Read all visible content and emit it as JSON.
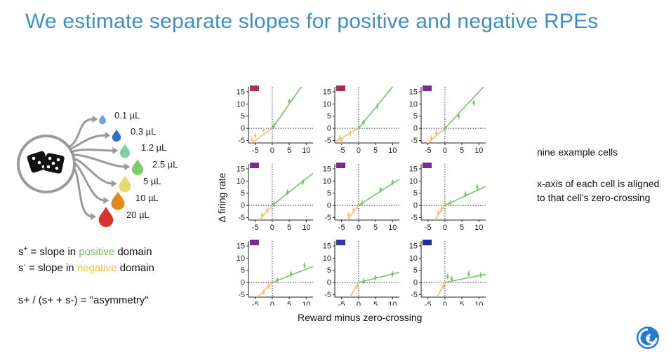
{
  "slide": {
    "title": "We estimate separate slopes for positive and negative RPEs"
  },
  "diagram": {
    "drops": [
      {
        "label": "0.1 µL",
        "color": "#6aa7e2"
      },
      {
        "label": "0.3 µL",
        "color": "#2f6fc0"
      },
      {
        "label": "1.2 µL",
        "color": "#7fd0aa"
      },
      {
        "label": "2.5 µL",
        "color": "#7ecb6a"
      },
      {
        "label": "5 µL",
        "color": "#e3db6c"
      },
      {
        "label": "10 µL",
        "color": "#e08a1e"
      },
      {
        "label": "20 µL",
        "color": "#d8332f"
      }
    ]
  },
  "equations": {
    "s_plus_symbol": "s",
    "s_plus_sup": "+",
    "s_plus_prefix": " = slope in ",
    "s_plus_word": "positive",
    "s_plus_suffix": " domain",
    "s_minus_symbol": "s",
    "s_minus_sup": "-",
    "s_minus_prefix": " = slope in ",
    "s_minus_word": "negative",
    "s_minus_suffix": " domain",
    "asym_text": "s+ / (s+ + s-) = \"asymmetry\"",
    "positive_color": "#6cc05e",
    "negative_color": "#f1c24a"
  },
  "notes": {
    "line1": "nine example cells",
    "line2": "x-axis of each cell is aligned to that cell's zero-crossing"
  },
  "chart_data": {
    "type": "scatter",
    "ylabel": "Δ firing rate",
    "xlabel": "Reward minus zero-crossing",
    "xlim": [
      -7,
      12
    ],
    "ylim": [
      -6,
      17
    ],
    "xticks": [
      -5,
      0,
      5,
      10
    ],
    "yticks": [
      -5,
      0,
      5,
      10,
      15
    ],
    "positive_color": "#78c46c",
    "negative_color": "#f2c17a",
    "cells": [
      {
        "tag_color": "#a8365e",
        "s_neg": 1.0,
        "s_pos": 2.0,
        "neg_points": [
          [
            -6,
            -4.5
          ],
          [
            -5,
            -3
          ],
          [
            -2.5,
            -0.8
          ]
        ],
        "pos_points": [
          [
            0.5,
            1
          ],
          [
            5,
            11
          ]
        ]
      },
      {
        "tag_color": "#a0305a",
        "s_neg": 0.8,
        "s_pos": 1.7,
        "neg_points": [
          [
            -5.5,
            -4
          ],
          [
            -5,
            -5
          ],
          [
            -2.5,
            -2
          ]
        ],
        "pos_points": [
          [
            1.5,
            2.5
          ],
          [
            5.5,
            9
          ]
        ]
      },
      {
        "tag_color": "#7a2a8e",
        "s_neg": 1.2,
        "s_pos": 1.5,
        "neg_points": [
          [
            -4,
            -4
          ],
          [
            -2.5,
            -2
          ]
        ],
        "pos_points": [
          [
            0,
            0
          ],
          [
            4,
            5
          ],
          [
            8.5,
            10.5
          ]
        ]
      },
      {
        "tag_color": "#7a2a8e",
        "s_neg": 1.6,
        "s_pos": 1.1,
        "neg_points": [
          [
            -3,
            -4
          ],
          [
            -1.5,
            -2
          ]
        ],
        "pos_points": [
          [
            0.5,
            0.5
          ],
          [
            4.5,
            5.5
          ],
          [
            9,
            9.5
          ]
        ]
      },
      {
        "tag_color": "#7a2a8e",
        "s_neg": 1.8,
        "s_pos": 0.9,
        "neg_points": [
          [
            -3,
            -4
          ],
          [
            -1.5,
            -2
          ]
        ],
        "pos_points": [
          [
            1,
            1
          ],
          [
            6.5,
            6.5
          ],
          [
            10,
            9.5
          ]
        ]
      },
      {
        "tag_color": "#7a2a8e",
        "s_neg": 2.0,
        "s_pos": 0.65,
        "neg_points": [
          [
            -2,
            -3
          ],
          [
            -1,
            -1.5
          ]
        ],
        "pos_points": [
          [
            1.5,
            1
          ],
          [
            6,
            4.5
          ],
          [
            9.5,
            7.5
          ]
        ]
      },
      {
        "tag_color": "#7a2a8e",
        "s_neg": 1.4,
        "s_pos": 0.55,
        "neg_points": [
          [
            -2.5,
            -4
          ],
          [
            -1,
            -1.5
          ]
        ],
        "pos_points": [
          [
            1.5,
            1
          ],
          [
            5.5,
            3.5
          ],
          [
            9.5,
            7
          ]
        ]
      },
      {
        "tag_color": "#2a3aa0",
        "s_neg": 2.4,
        "s_pos": 0.35,
        "neg_points": [
          [
            -0.5,
            -1.5
          ]
        ],
        "pos_points": [
          [
            1.5,
            0.5
          ],
          [
            5,
            2
          ],
          [
            10,
            3.5
          ]
        ]
      },
      {
        "tag_color": "#1a2aa8",
        "s_neg": 2.6,
        "s_pos": 0.28,
        "neg_points": [
          [
            -0.5,
            -1.5
          ]
        ],
        "pos_points": [
          [
            0.8,
            2.5
          ],
          [
            2,
            1.5
          ],
          [
            7,
            3.5
          ],
          [
            10.5,
            3
          ]
        ]
      }
    ]
  }
}
